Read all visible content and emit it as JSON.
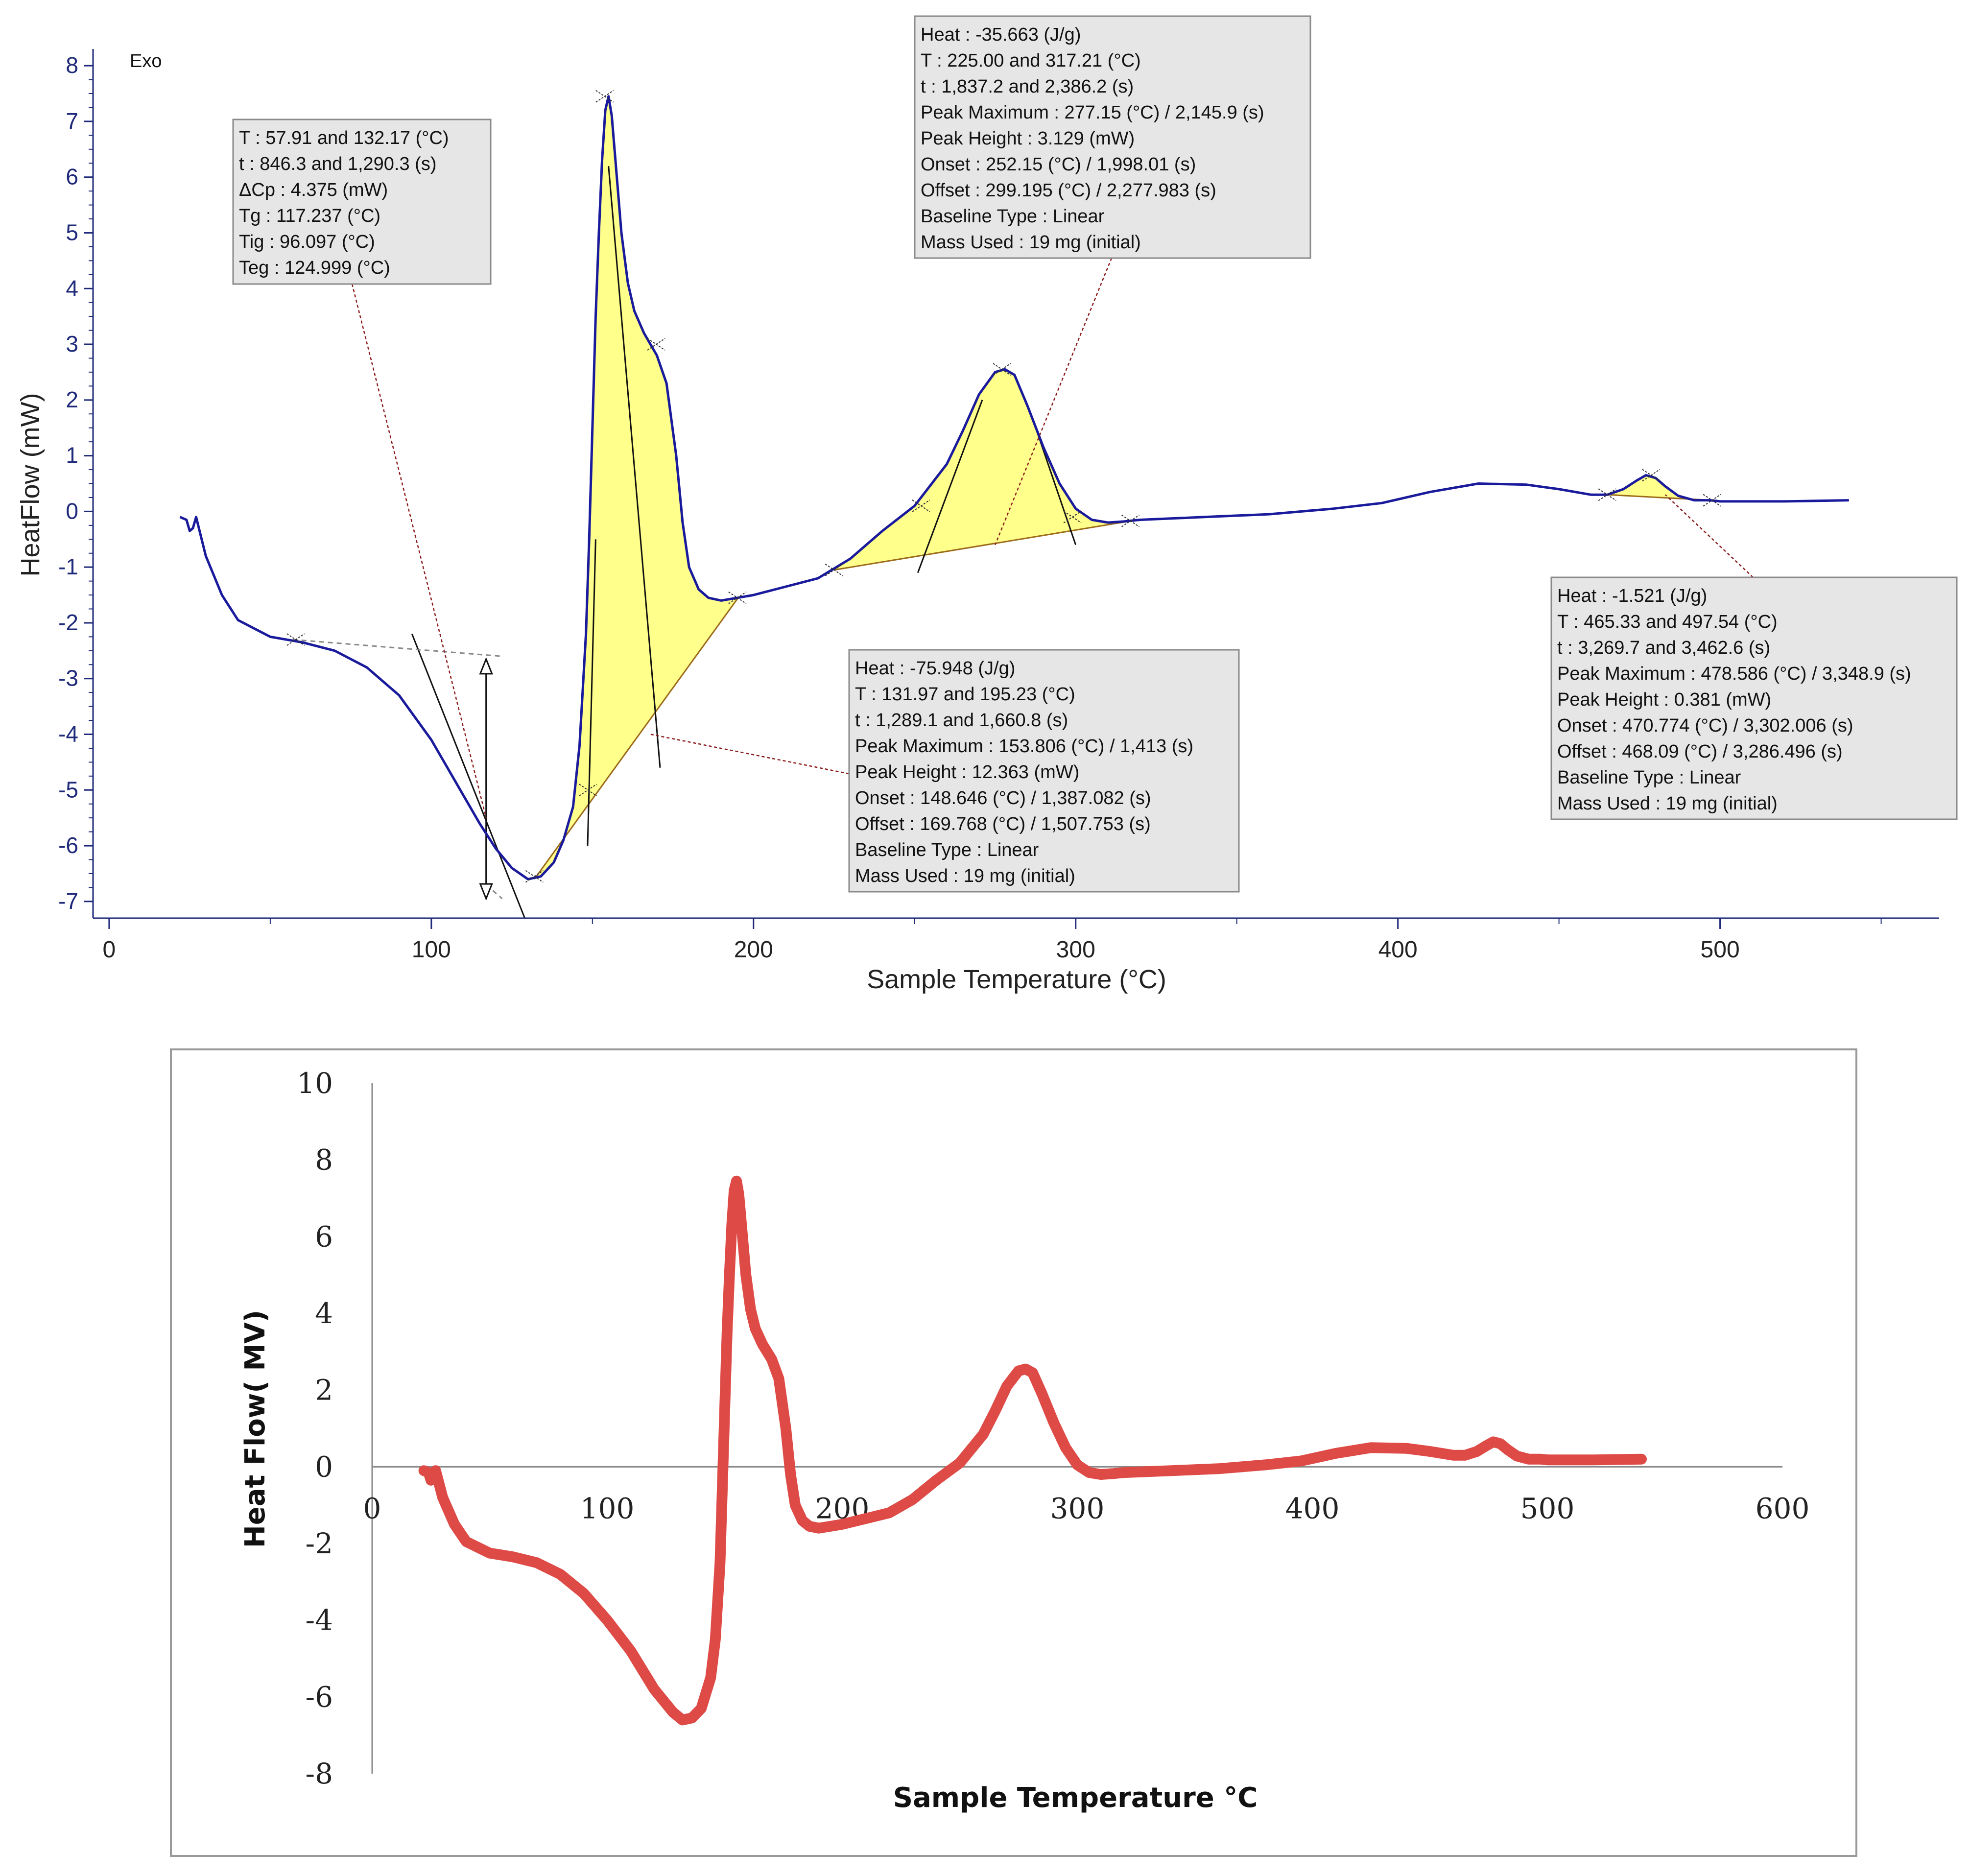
{
  "colors": {
    "axis_top": "#1f2a7a",
    "curve_top": "#1a1a9c",
    "fill_yellow": "#ffff8c",
    "baseline": "#9b6b1a",
    "leader": "#8b1a1a",
    "box_fill": "#e6e6e6",
    "box_border": "#8a8a8a",
    "curve_bottom": "#de4a46",
    "frame": "#9a9a9a"
  },
  "chart_data": [
    {
      "type": "line",
      "title": "",
      "corner_label": "Exo",
      "xlabel": "Sample Temperature (°C)",
      "ylabel": "HeatFlow (mW)",
      "xlim": [
        -5,
        568
      ],
      "ylim": [
        -7.3,
        8.3
      ],
      "xticks": [
        0,
        100,
        200,
        300,
        400,
        500
      ],
      "xtick_labels": [
        "0",
        "100",
        "200",
        "300",
        "400",
        "500"
      ],
      "yticks": [
        8,
        7,
        6,
        5,
        4,
        3,
        2,
        1,
        0,
        -1,
        -2,
        -3,
        -4,
        -5,
        -6,
        -7
      ],
      "ytick_labels": [
        "8",
        "7",
        "6",
        "5",
        "4",
        "3",
        "2",
        "1",
        "0",
        "-1",
        "-2",
        "-3",
        "-4",
        "-5",
        "-6",
        "-7"
      ],
      "series": [
        {
          "name": "HeatFlow",
          "x": [
            22,
            24,
            25,
            26,
            27,
            30,
            35,
            40,
            50,
            60,
            70,
            80,
            90,
            100,
            105,
            110,
            115,
            120,
            125,
            130,
            134,
            138,
            141,
            144,
            146,
            148,
            149,
            150,
            151,
            152,
            153,
            154,
            155,
            156,
            157,
            159,
            161,
            163,
            166,
            170,
            173,
            176,
            178,
            180,
            183,
            186,
            190,
            195,
            200,
            210,
            220,
            230,
            240,
            250,
            260,
            265,
            270,
            275,
            278,
            281,
            285,
            290,
            295,
            300,
            305,
            310,
            315,
            320,
            340,
            360,
            380,
            395,
            410,
            425,
            440,
            450,
            460,
            465,
            470,
            474,
            477,
            480,
            483,
            487,
            492,
            497,
            500,
            510,
            520,
            540
          ],
          "y": [
            -0.1,
            -0.15,
            -0.35,
            -0.3,
            -0.1,
            -0.8,
            -1.5,
            -1.95,
            -2.25,
            -2.35,
            -2.5,
            -2.8,
            -3.3,
            -4.1,
            -4.6,
            -5.1,
            -5.6,
            -6.05,
            -6.4,
            -6.6,
            -6.55,
            -6.3,
            -5.9,
            -5.3,
            -4.2,
            -2.2,
            -0.5,
            1.5,
            3.5,
            5.0,
            6.3,
            7.2,
            7.45,
            7.1,
            6.4,
            5.0,
            4.1,
            3.6,
            3.2,
            2.8,
            2.3,
            1.0,
            -0.2,
            -1.0,
            -1.4,
            -1.55,
            -1.6,
            -1.55,
            -1.5,
            -1.35,
            -1.2,
            -0.85,
            -0.35,
            0.1,
            0.85,
            1.45,
            2.1,
            2.5,
            2.55,
            2.45,
            1.9,
            1.15,
            0.5,
            0.05,
            -0.15,
            -0.2,
            -0.18,
            -0.15,
            -0.1,
            -0.05,
            0.05,
            0.15,
            0.35,
            0.5,
            0.48,
            0.4,
            0.3,
            0.3,
            0.4,
            0.55,
            0.65,
            0.6,
            0.45,
            0.28,
            0.2,
            0.2,
            0.18,
            0.18,
            0.18,
            0.2
          ]
        }
      ],
      "annotations": [
        {
          "name": "glass-transition",
          "lines": [
            "T :  57.91 and 132.17 (°C)",
            "t :  846.3 and 1,290.3 (s)",
            "ΔCp :  4.375 (mW)",
            "Tg :  117.237 (°C)",
            "Tig :  96.097 (°C)",
            "Teg :  124.999 (°C)"
          ],
          "pointer": [
            117,
            -5.5
          ]
        },
        {
          "name": "peak-1",
          "lines": [
            "Heat :  -75.948 (J/g)",
            "T :  131.97 and 195.23 (°C)",
            "t :  1,289.1 and 1,660.8 (s)",
            "Peak Maximum :  153.806 (°C) / 1,413 (s)",
            "Peak Height :  12.363 (mW)",
            "Onset :  148.646 (°C) / 1,387.082 (s)",
            "Offset :  169.768 (°C) / 1,507.753 (s)",
            "Baseline Type :  Linear",
            "Mass Used :  19 mg (initial)"
          ],
          "pointer": [
            168,
            -4.0
          ]
        },
        {
          "name": "peak-2",
          "lines": [
            "Heat :  -35.663 (J/g)",
            "T :  225.00 and 317.21 (°C)",
            "t :  1,837.2 and 2,386.2 (s)",
            "Peak Maximum :  277.15 (°C) / 2,145.9 (s)",
            "Peak Height :  3.129 (mW)",
            "Onset :  252.15 (°C) / 1,998.01 (s)",
            "Offset :  299.195 (°C) / 2,277.983 (s)",
            "Baseline Type :  Linear",
            "Mass Used :  19 mg (initial)"
          ],
          "pointer": [
            275,
            -0.6
          ]
        },
        {
          "name": "peak-3",
          "lines": [
            "Heat :  -1.521 (J/g)",
            "T :  465.33 and 497.54 (°C)",
            "t :  3,269.7 and 3,462.6 (s)",
            "Peak Maximum :  478.586 (°C) / 3,348.9 (s)",
            "Peak Height :  0.381 (mW)",
            "Onset :  470.774 (°C) / 3,302.006 (s)",
            "Offset :  468.09 (°C) / 3,286.496 (s)",
            "Baseline Type :  Linear",
            "Mass Used :  19 mg (initial)"
          ],
          "pointer": [
            483,
            0.3
          ]
        }
      ],
      "integration_regions": [
        {
          "from": 131.97,
          "to": 195.23,
          "baseline_start": -6.6,
          "baseline_end": -1.55
        },
        {
          "from": 225.0,
          "to": 317.21,
          "baseline_start": -1.05,
          "baseline_end": -0.17
        },
        {
          "from": 465.33,
          "to": 497.54,
          "baseline_start": 0.3,
          "baseline_end": 0.2
        }
      ]
    },
    {
      "type": "line",
      "title": "",
      "xlabel": "Sample Temperature °C",
      "ylabel": "Heat Flow( MV)",
      "xlim": [
        0,
        600
      ],
      "ylim": [
        -8,
        10
      ],
      "xticks": [
        0,
        100,
        200,
        300,
        400,
        500,
        600
      ],
      "xtick_labels": [
        "0",
        "100",
        "200",
        "300",
        "400",
        "500",
        "600"
      ],
      "yticks": [
        10,
        8,
        6,
        4,
        2,
        0,
        -2,
        -4,
        -6,
        -8
      ],
      "ytick_labels": [
        "10",
        "8",
        "6",
        "4",
        "2",
        "0",
        "-2",
        "-4",
        "-6",
        "-8"
      ],
      "series": [
        {
          "name": "Heat Flow",
          "x": [
            22,
            24,
            25,
            26,
            27,
            30,
            35,
            40,
            50,
            60,
            70,
            80,
            90,
            100,
            110,
            120,
            128,
            132,
            136,
            140,
            144,
            146,
            148,
            149,
            150,
            151,
            152,
            153,
            154,
            155,
            156,
            157,
            159,
            161,
            163,
            166,
            170,
            173,
            176,
            178,
            180,
            183,
            186,
            190,
            195,
            200,
            210,
            220,
            230,
            240,
            250,
            260,
            265,
            270,
            275,
            278,
            281,
            285,
            290,
            295,
            300,
            305,
            310,
            315,
            320,
            340,
            360,
            380,
            395,
            410,
            425,
            440,
            450,
            460,
            465,
            470,
            474,
            477,
            480,
            483,
            487,
            492,
            497,
            500,
            510,
            520,
            540
          ],
          "y": [
            -0.1,
            -0.15,
            -0.35,
            -0.3,
            -0.1,
            -0.8,
            -1.5,
            -1.95,
            -2.25,
            -2.35,
            -2.5,
            -2.8,
            -3.3,
            -4.0,
            -4.8,
            -5.8,
            -6.4,
            -6.6,
            -6.55,
            -6.3,
            -5.5,
            -4.5,
            -2.5,
            -0.5,
            1.5,
            3.5,
            5.0,
            6.3,
            7.2,
            7.45,
            7.1,
            6.4,
            5.0,
            4.1,
            3.6,
            3.2,
            2.8,
            2.3,
            1.0,
            -0.2,
            -1.0,
            -1.4,
            -1.55,
            -1.6,
            -1.55,
            -1.5,
            -1.35,
            -1.2,
            -0.85,
            -0.35,
            0.1,
            0.85,
            1.45,
            2.1,
            2.5,
            2.55,
            2.45,
            1.9,
            1.15,
            0.5,
            0.05,
            -0.15,
            -0.2,
            -0.18,
            -0.15,
            -0.1,
            -0.05,
            0.05,
            0.15,
            0.35,
            0.5,
            0.48,
            0.4,
            0.3,
            0.3,
            0.4,
            0.55,
            0.65,
            0.6,
            0.45,
            0.28,
            0.2,
            0.2,
            0.18,
            0.18,
            0.18,
            0.2
          ]
        }
      ]
    }
  ]
}
